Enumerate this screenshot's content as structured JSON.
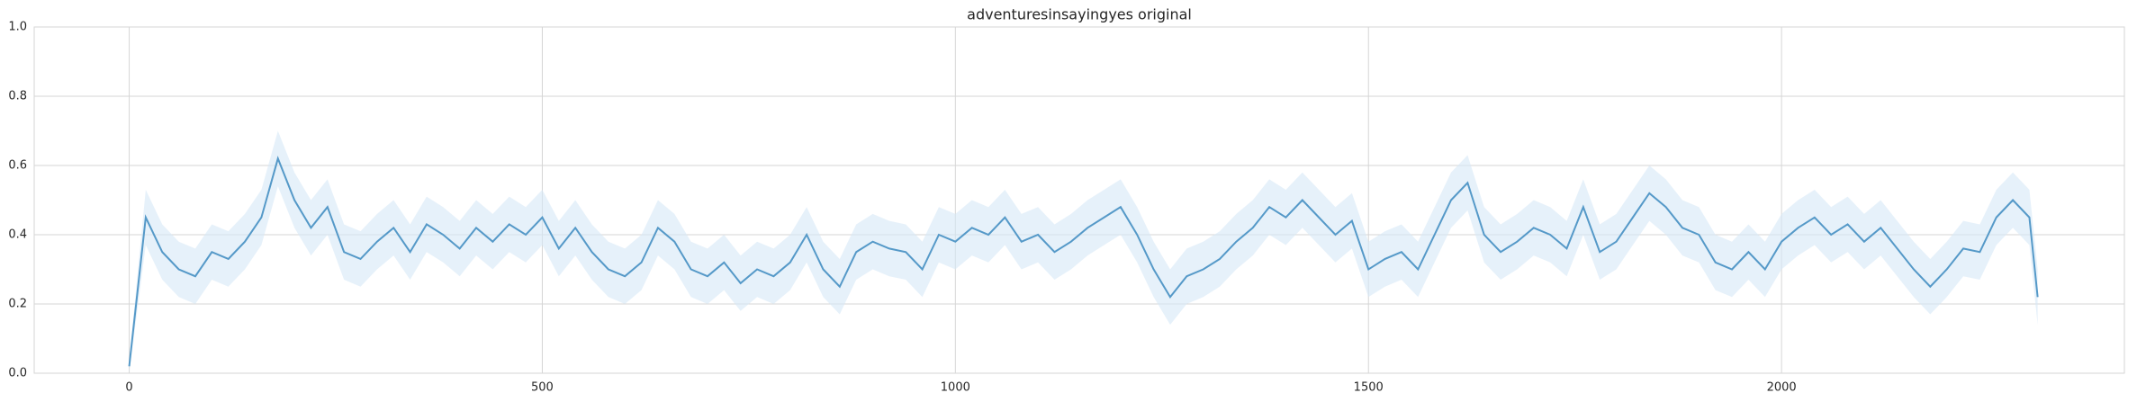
{
  "chart_data": {
    "type": "line",
    "title": "adventuresinsayingyes original",
    "x": [
      0,
      20,
      40,
      60,
      80,
      100,
      120,
      140,
      160,
      180,
      200,
      220,
      240,
      260,
      280,
      300,
      320,
      340,
      360,
      380,
      400,
      420,
      440,
      460,
      480,
      500,
      520,
      540,
      560,
      580,
      600,
      620,
      640,
      660,
      680,
      700,
      720,
      740,
      760,
      780,
      800,
      820,
      840,
      860,
      880,
      900,
      920,
      940,
      960,
      980,
      1000,
      1020,
      1040,
      1060,
      1080,
      1100,
      1120,
      1140,
      1160,
      1180,
      1200,
      1220,
      1240,
      1260,
      1280,
      1300,
      1320,
      1340,
      1360,
      1380,
      1400,
      1420,
      1440,
      1460,
      1480,
      1500,
      1520,
      1540,
      1560,
      1580,
      1600,
      1620,
      1640,
      1660,
      1680,
      1700,
      1720,
      1740,
      1760,
      1780,
      1800,
      1820,
      1840,
      1860,
      1880,
      1900,
      1920,
      1940,
      1960,
      1980,
      2000,
      2020,
      2040,
      2060,
      2080,
      2100,
      2120,
      2140,
      2160,
      2180,
      2200,
      2220,
      2240,
      2260,
      2280,
      2300,
      2310
    ],
    "values": [
      0.02,
      0.45,
      0.35,
      0.3,
      0.28,
      0.35,
      0.33,
      0.38,
      0.45,
      0.62,
      0.5,
      0.42,
      0.48,
      0.35,
      0.33,
      0.38,
      0.42,
      0.35,
      0.43,
      0.4,
      0.36,
      0.42,
      0.38,
      0.43,
      0.4,
      0.45,
      0.36,
      0.42,
      0.35,
      0.3,
      0.28,
      0.32,
      0.42,
      0.38,
      0.3,
      0.28,
      0.32,
      0.26,
      0.3,
      0.28,
      0.32,
      0.4,
      0.3,
      0.25,
      0.35,
      0.38,
      0.36,
      0.35,
      0.3,
      0.4,
      0.38,
      0.42,
      0.4,
      0.45,
      0.38,
      0.4,
      0.35,
      0.38,
      0.42,
      0.45,
      0.48,
      0.4,
      0.3,
      0.22,
      0.28,
      0.3,
      0.33,
      0.38,
      0.42,
      0.48,
      0.45,
      0.5,
      0.45,
      0.4,
      0.44,
      0.3,
      0.33,
      0.35,
      0.3,
      0.4,
      0.5,
      0.55,
      0.4,
      0.35,
      0.38,
      0.42,
      0.4,
      0.36,
      0.48,
      0.35,
      0.38,
      0.45,
      0.52,
      0.48,
      0.42,
      0.4,
      0.32,
      0.3,
      0.35,
      0.3,
      0.38,
      0.42,
      0.45,
      0.4,
      0.43,
      0.38,
      0.42,
      0.36,
      0.3,
      0.25,
      0.3,
      0.36,
      0.35,
      0.45,
      0.5,
      0.45,
      0.22
    ],
    "lower": [
      0.0,
      0.37,
      0.27,
      0.22,
      0.2,
      0.27,
      0.25,
      0.3,
      0.37,
      0.54,
      0.42,
      0.34,
      0.4,
      0.27,
      0.25,
      0.3,
      0.34,
      0.27,
      0.35,
      0.32,
      0.28,
      0.34,
      0.3,
      0.35,
      0.32,
      0.37,
      0.28,
      0.34,
      0.27,
      0.22,
      0.2,
      0.24,
      0.34,
      0.3,
      0.22,
      0.2,
      0.24,
      0.18,
      0.22,
      0.2,
      0.24,
      0.32,
      0.22,
      0.17,
      0.27,
      0.3,
      0.28,
      0.27,
      0.22,
      0.32,
      0.3,
      0.34,
      0.32,
      0.37,
      0.3,
      0.32,
      0.27,
      0.3,
      0.34,
      0.37,
      0.4,
      0.32,
      0.22,
      0.14,
      0.2,
      0.22,
      0.25,
      0.3,
      0.34,
      0.4,
      0.37,
      0.42,
      0.37,
      0.32,
      0.36,
      0.22,
      0.25,
      0.27,
      0.22,
      0.32,
      0.42,
      0.47,
      0.32,
      0.27,
      0.3,
      0.34,
      0.32,
      0.28,
      0.4,
      0.27,
      0.3,
      0.37,
      0.44,
      0.4,
      0.34,
      0.32,
      0.24,
      0.22,
      0.27,
      0.22,
      0.3,
      0.34,
      0.37,
      0.32,
      0.35,
      0.3,
      0.34,
      0.28,
      0.22,
      0.17,
      0.22,
      0.28,
      0.27,
      0.37,
      0.42,
      0.37,
      0.14
    ],
    "upper": [
      0.04,
      0.53,
      0.43,
      0.38,
      0.36,
      0.43,
      0.41,
      0.46,
      0.53,
      0.7,
      0.58,
      0.5,
      0.56,
      0.43,
      0.41,
      0.46,
      0.5,
      0.43,
      0.51,
      0.48,
      0.44,
      0.5,
      0.46,
      0.51,
      0.48,
      0.53,
      0.44,
      0.5,
      0.43,
      0.38,
      0.36,
      0.4,
      0.5,
      0.46,
      0.38,
      0.36,
      0.4,
      0.34,
      0.38,
      0.36,
      0.4,
      0.48,
      0.38,
      0.33,
      0.43,
      0.46,
      0.44,
      0.43,
      0.38,
      0.48,
      0.46,
      0.5,
      0.48,
      0.53,
      0.46,
      0.48,
      0.43,
      0.46,
      0.5,
      0.53,
      0.56,
      0.48,
      0.38,
      0.3,
      0.36,
      0.38,
      0.41,
      0.46,
      0.5,
      0.56,
      0.53,
      0.58,
      0.53,
      0.48,
      0.52,
      0.38,
      0.41,
      0.43,
      0.38,
      0.48,
      0.58,
      0.63,
      0.48,
      0.43,
      0.46,
      0.5,
      0.48,
      0.44,
      0.56,
      0.43,
      0.46,
      0.53,
      0.6,
      0.56,
      0.5,
      0.48,
      0.4,
      0.38,
      0.43,
      0.38,
      0.46,
      0.5,
      0.53,
      0.48,
      0.51,
      0.46,
      0.5,
      0.44,
      0.38,
      0.33,
      0.38,
      0.44,
      0.43,
      0.53,
      0.58,
      0.53,
      0.3
    ],
    "color": "#5599c8",
    "band_color": "#d6e7f6",
    "xlim": [
      -115,
      2415
    ],
    "xticks": [
      0,
      500,
      1000,
      1500,
      2000
    ],
    "ylim": [
      0,
      1
    ],
    "yticks": [
      {
        "value": 0,
        "label": "0.0"
      },
      0.2,
      0.4,
      0.6,
      0.8,
      {
        "value": 1,
        "label": "1.0"
      }
    ],
    "grid": true
  }
}
